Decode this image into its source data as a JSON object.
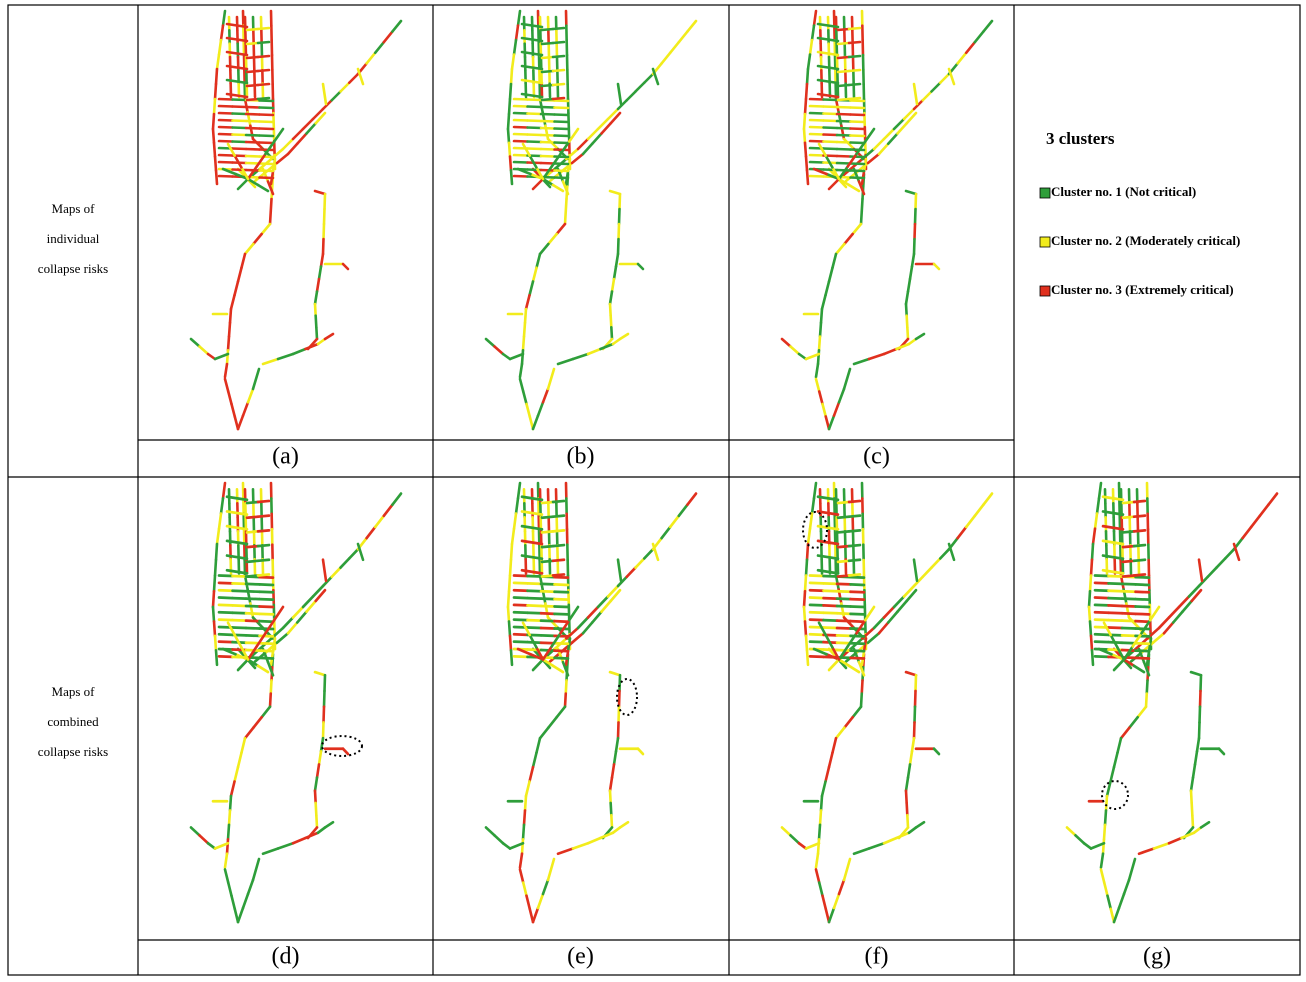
{
  "figure": {
    "rows": [
      {
        "label": [
          "Maps of",
          "individual",
          "collapse risks"
        ],
        "panels": [
          "(a)",
          "(b)",
          "(c)"
        ]
      },
      {
        "label": [
          "Maps of",
          "combined",
          "collapse risks"
        ],
        "panels": [
          "(d)",
          "(e)",
          "(f)",
          "(g)"
        ]
      }
    ],
    "legend": {
      "title": "3 clusters",
      "items": [
        {
          "text": "Cluster no. 1 (Not critical)",
          "color": "#2e9e3a"
        },
        {
          "text": "Cluster no. 2 (Moderately critical)",
          "color": "#f2ec1c"
        },
        {
          "text": "Cluster no. 3 (Extremely critical)",
          "color": "#e0301e"
        }
      ]
    }
  }
}
